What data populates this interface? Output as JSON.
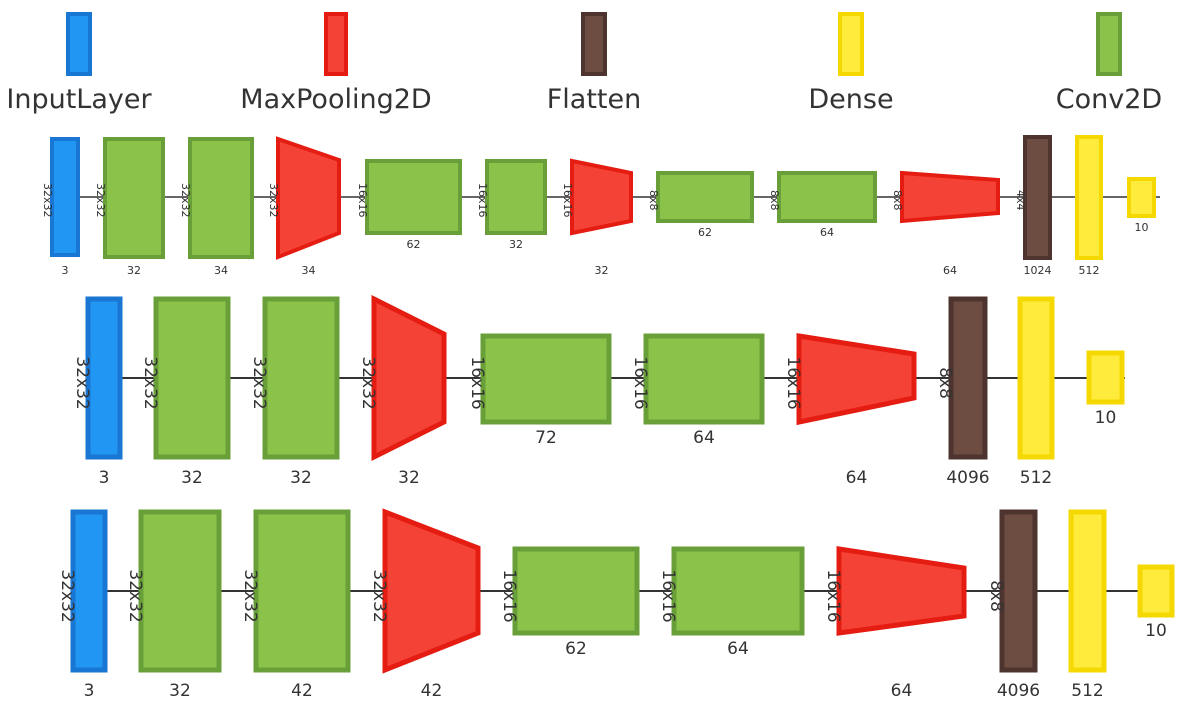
{
  "colors": {
    "InputLayer": {
      "fill": "#2196F3",
      "stroke": "#1976D2"
    },
    "MaxPooling2D": {
      "fill": "#F44336",
      "stroke": "#E51C12"
    },
    "Flatten": {
      "fill": "#6D4C41",
      "stroke": "#4E342E"
    },
    "Dense": {
      "fill": "#FFEB3B",
      "stroke": "#F4D800"
    },
    "Conv2D": {
      "fill": "#8BC34A",
      "stroke": "#689F38"
    },
    "line": "#333333"
  },
  "legend": [
    {
      "type": "InputLayer",
      "label": "InputLayer",
      "icon": "input-layer-swatch"
    },
    {
      "type": "MaxPooling2D",
      "label": "MaxPooling2D",
      "icon": "maxpooling-swatch"
    },
    {
      "type": "Flatten",
      "label": "Flatten",
      "icon": "flatten-swatch"
    },
    {
      "type": "Dense",
      "label": "Dense",
      "icon": "dense-swatch"
    },
    {
      "type": "Conv2D",
      "label": "Conv2D",
      "icon": "conv2d-swatch"
    }
  ],
  "networks": [
    {
      "layers": [
        {
          "type": "InputLayer",
          "in_size": "32x32",
          "label": "3"
        },
        {
          "type": "Conv2D",
          "in_size": "32x32",
          "label": "32"
        },
        {
          "type": "Conv2D",
          "in_size": "32x32",
          "label": "34"
        },
        {
          "type": "MaxPooling2D",
          "in_size": "32x32",
          "label": "34"
        },
        {
          "type": "Conv2D",
          "in_size": "16x16",
          "label": "62"
        },
        {
          "type": "Conv2D",
          "in_size": "16x16",
          "label": "32"
        },
        {
          "type": "MaxPooling2D",
          "in_size": "16x16",
          "label": "32"
        },
        {
          "type": "Conv2D",
          "in_size": "8x8",
          "label": "62"
        },
        {
          "type": "Conv2D",
          "in_size": "8x8",
          "label": "64"
        },
        {
          "type": "MaxPooling2D",
          "in_size": "8x8",
          "label": "64"
        },
        {
          "type": "Flatten",
          "in_size": "4x4",
          "label": "1024"
        },
        {
          "type": "Dense",
          "in_size": "",
          "label": "512"
        },
        {
          "type": "Dense",
          "in_size": "",
          "label": "10"
        }
      ]
    },
    {
      "layers": [
        {
          "type": "InputLayer",
          "in_size": "32x32",
          "label": "3"
        },
        {
          "type": "Conv2D",
          "in_size": "32x32",
          "label": "32"
        },
        {
          "type": "Conv2D",
          "in_size": "32x32",
          "label": "32"
        },
        {
          "type": "MaxPooling2D",
          "in_size": "32x32",
          "label": "32"
        },
        {
          "type": "Conv2D",
          "in_size": "16x16",
          "label": "72"
        },
        {
          "type": "Conv2D",
          "in_size": "16x16",
          "label": "64"
        },
        {
          "type": "MaxPooling2D",
          "in_size": "16x16",
          "label": "64"
        },
        {
          "type": "Flatten",
          "in_size": "8x8",
          "label": "4096"
        },
        {
          "type": "Dense",
          "in_size": "",
          "label": "512"
        },
        {
          "type": "Dense",
          "in_size": "",
          "label": "10"
        }
      ]
    },
    {
      "layers": [
        {
          "type": "InputLayer",
          "in_size": "32x32",
          "label": "3"
        },
        {
          "type": "Conv2D",
          "in_size": "32x32",
          "label": "32"
        },
        {
          "type": "Conv2D",
          "in_size": "32x32",
          "label": "42"
        },
        {
          "type": "MaxPooling2D",
          "in_size": "32x32",
          "label": "42"
        },
        {
          "type": "Conv2D",
          "in_size": "16x16",
          "label": "62"
        },
        {
          "type": "Conv2D",
          "in_size": "16x16",
          "label": "64"
        },
        {
          "type": "MaxPooling2D",
          "in_size": "16x16",
          "label": "64"
        },
        {
          "type": "Flatten",
          "in_size": "8x8",
          "label": "4096"
        },
        {
          "type": "Dense",
          "in_size": "",
          "label": "512"
        },
        {
          "type": "Dense",
          "in_size": "",
          "label": "10"
        }
      ]
    }
  ]
}
